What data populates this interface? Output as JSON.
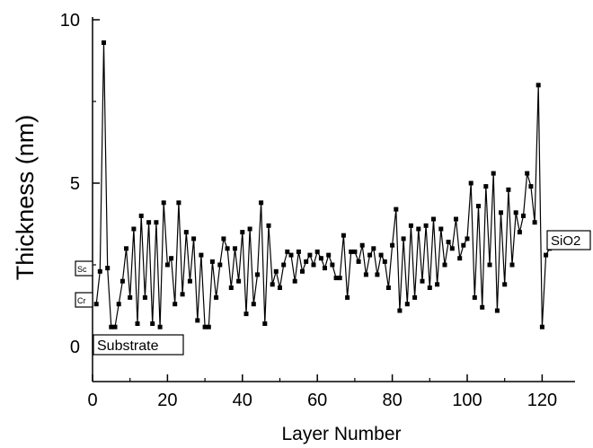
{
  "chart_data": {
    "type": "line",
    "xlabel": "Layer Number",
    "ylabel": "Thickness (nm)",
    "xlim": [
      0,
      130
    ],
    "ylim": [
      -1,
      10
    ],
    "xticks": [
      0,
      20,
      40,
      60,
      80,
      100,
      120
    ],
    "yticks": [
      0,
      5,
      10
    ],
    "grid": false,
    "marker": "square",
    "series": [
      {
        "x": [
          1,
          2,
          3,
          4,
          5,
          6,
          7,
          8,
          9,
          10,
          11,
          12,
          13,
          14,
          15,
          16,
          17,
          18,
          19,
          20,
          21,
          22,
          23,
          24,
          25,
          26,
          27,
          28,
          29,
          30,
          31,
          32,
          33,
          34,
          35,
          36,
          37,
          38,
          39,
          40,
          41,
          42,
          43,
          44,
          45,
          46,
          47,
          48,
          49,
          50,
          51,
          52,
          53,
          54,
          55,
          56,
          57,
          58,
          59,
          60,
          61,
          62,
          63,
          64,
          65,
          66,
          67,
          68,
          69,
          70,
          71,
          72,
          73,
          74,
          75,
          76,
          77,
          78,
          79,
          80,
          81,
          82,
          83,
          84,
          85,
          86,
          87,
          88,
          89,
          90,
          91,
          92,
          93,
          94,
          95,
          96,
          97,
          98,
          99,
          100,
          101,
          102,
          103,
          104,
          105,
          106,
          107,
          108,
          109,
          110,
          111,
          112,
          113,
          114,
          115,
          116,
          117,
          118,
          119,
          120,
          121,
          122
        ],
        "values": [
          1.3,
          2.3,
          9.3,
          2.4,
          0.6,
          0.6,
          1.3,
          2.0,
          3.0,
          1.5,
          3.6,
          0.7,
          4.0,
          1.5,
          3.8,
          0.7,
          3.8,
          0.6,
          4.4,
          2.5,
          2.7,
          1.3,
          4.4,
          1.6,
          3.5,
          2.0,
          3.3,
          0.8,
          2.8,
          0.6,
          0.6,
          2.6,
          1.5,
          2.5,
          3.3,
          3.0,
          1.8,
          3.0,
          2.0,
          3.5,
          1.0,
          3.6,
          1.3,
          2.2,
          4.4,
          0.7,
          3.7,
          1.9,
          2.3,
          1.8,
          2.5,
          2.9,
          2.8,
          2.0,
          2.9,
          2.3,
          2.6,
          2.8,
          2.5,
          2.9,
          2.7,
          2.4,
          2.8,
          2.5,
          2.1,
          2.1,
          3.4,
          1.5,
          2.9,
          2.9,
          2.6,
          3.1,
          2.2,
          2.8,
          3.0,
          2.2,
          2.8,
          2.6,
          1.8,
          3.1,
          4.2,
          1.1,
          3.3,
          1.3,
          3.7,
          1.5,
          3.6,
          2.0,
          3.7,
          1.8,
          3.9,
          1.9,
          3.6,
          2.5,
          3.2,
          3.0,
          3.9,
          2.7,
          3.1,
          3.3,
          5.0,
          1.5,
          4.3,
          1.2,
          4.9,
          2.5,
          5.3,
          1.1,
          4.1,
          1.9,
          4.8,
          2.5,
          4.1,
          3.5,
          4.0,
          5.3,
          4.9,
          3.8,
          8.0,
          0.6,
          2.8,
          3.0
        ]
      }
    ],
    "annotations": [
      "Substrate",
      "Cr",
      "Sc",
      "SiO2"
    ]
  }
}
